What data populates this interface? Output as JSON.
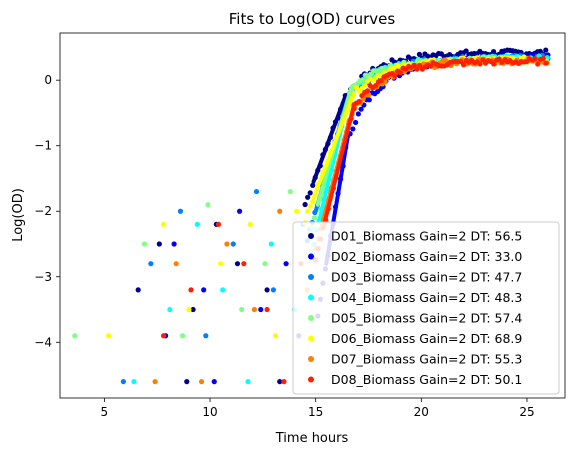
{
  "chart_data": {
    "type": "scatter",
    "title": "Fits to Log(OD) curves",
    "xlabel": "Time hours",
    "ylabel": "Log(OD)",
    "xlim": [
      2.9,
      26.8
    ],
    "ylim": [
      -4.85,
      0.72
    ],
    "xticks": [
      5,
      10,
      15,
      20,
      25
    ],
    "yticks": [
      0,
      -1,
      -2,
      -3,
      -4
    ],
    "ytick_labels": [
      "0",
      "−1",
      "−2",
      "−3",
      "−4"
    ],
    "grid": false,
    "legend_position": "lower-right",
    "series": [
      {
        "name": "D01_Biomass Gain=2 DT: 56.5",
        "color": "#00008f",
        "scatter": [
          [
            6.6,
            -3.2
          ],
          [
            7.6,
            -2.5
          ],
          [
            8.9,
            -4.6
          ],
          [
            9.2,
            -3.5
          ],
          [
            10.3,
            -2.2
          ],
          [
            11.3,
            -2.8
          ],
          [
            12.7,
            -3.2
          ],
          [
            13.3,
            -4.6
          ]
        ],
        "fit": [
          [
            14.9,
            -1.55
          ],
          [
            16.4,
            -0.25
          ]
        ]
      },
      {
        "name": "D02_Biomass Gain=2 DT: 33.0",
        "color": "#0000ff",
        "scatter": [
          [
            7.9,
            -3.9
          ],
          [
            8.3,
            -2.5
          ],
          [
            9.7,
            -3.2
          ],
          [
            10.2,
            -4.6
          ],
          [
            11.4,
            -2.0
          ],
          [
            12.4,
            -3.5
          ],
          [
            13.6,
            -2.8
          ],
          [
            14.2,
            -3.9
          ]
        ],
        "fit": [
          [
            15.5,
            -2.8
          ],
          [
            16.5,
            -0.9
          ]
        ]
      },
      {
        "name": "D03_Biomass Gain=2 DT: 47.7",
        "color": "#0080ff",
        "scatter": [
          [
            5.9,
            -4.6
          ],
          [
            7.2,
            -2.8
          ],
          [
            8.6,
            -2.0
          ],
          [
            9.8,
            -3.9
          ],
          [
            11.1,
            -2.5
          ],
          [
            12.2,
            -1.7
          ],
          [
            13.0,
            -3.2
          ],
          [
            14.4,
            -2.2
          ]
        ],
        "fit": [
          [
            15.0,
            -2.0
          ],
          [
            16.5,
            -0.3
          ]
        ]
      },
      {
        "name": "D04_Biomass Gain=2 DT: 48.3",
        "color": "#00ffff",
        "scatter": [
          [
            6.4,
            -4.6
          ],
          [
            8.1,
            -3.5
          ],
          [
            9.4,
            -2.2
          ],
          [
            10.6,
            -3.2
          ],
          [
            11.8,
            -4.6
          ],
          [
            12.9,
            -2.5
          ],
          [
            14.0,
            -3.5
          ]
        ],
        "fit": [
          [
            15.2,
            -2.1
          ],
          [
            16.6,
            -0.2
          ]
        ]
      },
      {
        "name": "D05_Biomass Gain=2 DT: 57.4",
        "color": "#80ff80",
        "scatter": [
          [
            3.6,
            -3.9
          ],
          [
            6.9,
            -2.5
          ],
          [
            8.7,
            -3.9
          ],
          [
            9.9,
            -1.9
          ],
          [
            11.5,
            -3.5
          ],
          [
            12.6,
            -2.8
          ],
          [
            13.8,
            -1.7
          ]
        ],
        "fit": [
          [
            15.1,
            -1.9
          ],
          [
            16.7,
            -0.1
          ]
        ]
      },
      {
        "name": "D06_Biomass Gain=2 DT: 68.9",
        "color": "#ffff00",
        "scatter": [
          [
            5.2,
            -3.9
          ],
          [
            7.8,
            -2.2
          ],
          [
            9.0,
            -3.5
          ],
          [
            10.5,
            -2.8
          ],
          [
            11.9,
            -2.2
          ],
          [
            13.1,
            -3.9
          ],
          [
            14.1,
            -2.0
          ]
        ],
        "fit": [
          [
            14.9,
            -1.8
          ],
          [
            16.8,
            -0.2
          ]
        ]
      },
      {
        "name": "D07_Biomass Gain=2 DT: 55.3",
        "color": "#ff8000",
        "scatter": [
          [
            7.4,
            -4.6
          ],
          [
            8.4,
            -2.8
          ],
          [
            9.6,
            -4.6
          ],
          [
            10.8,
            -2.5
          ],
          [
            12.1,
            -3.5
          ],
          [
            13.3,
            -2.0
          ],
          [
            14.6,
            -3.2
          ]
        ],
        "fit": [
          [
            15.3,
            -2.2
          ],
          [
            16.6,
            -0.6
          ]
        ]
      },
      {
        "name": "D08_Biomass Gain=2 DT: 50.1",
        "color": "#ff2000",
        "scatter": [
          [
            7.8,
            -3.9
          ],
          [
            9.1,
            -3.2
          ],
          [
            10.4,
            -2.2
          ],
          [
            11.6,
            -2.8
          ],
          [
            12.7,
            -3.5
          ],
          [
            13.5,
            -4.6
          ],
          [
            14.3,
            -2.8
          ]
        ],
        "fit": [
          [
            15.4,
            -2.2
          ],
          [
            16.8,
            -0.4
          ]
        ]
      }
    ]
  }
}
